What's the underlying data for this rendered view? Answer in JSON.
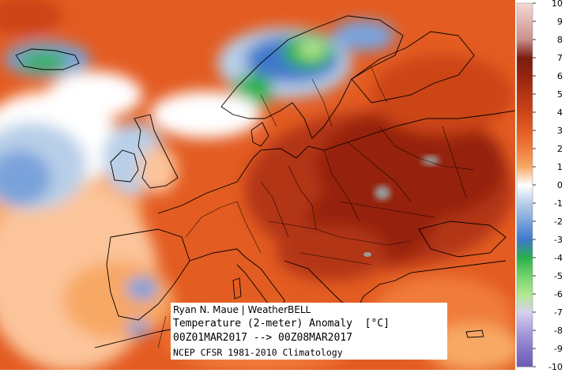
{
  "map": {
    "title": "Temperature (2-meter) Anomaly",
    "units": "[°C]",
    "period": "00Z01MAR2017 --> 00Z08MAR2017",
    "climatology": "NCEP CFSR 1981-2010 Climatology",
    "credit": "Ryan N. Maue | WeatherBELL",
    "region": "Europe"
  },
  "colorbar": {
    "labels": [
      "10",
      "9",
      "8",
      "7",
      "6",
      "5",
      "4",
      "3",
      "2",
      "1",
      "0",
      "-1",
      "-2",
      "-3",
      "-4",
      "-5",
      "-6",
      "-7",
      "-8",
      "-9",
      "-10"
    ],
    "colors": {
      "10": "#f2d9d4",
      "9": "#e0b5b1",
      "8": "#c98e8e",
      "7": "#7a1c0f",
      "6": "#962410",
      "5": "#b23514",
      "4": "#cc4418",
      "3": "#e35c22",
      "2": "#f07c3a",
      "1": "#f8a865",
      "0": "#ffffff",
      "-1": "#b8cfe8",
      "-2": "#7aa3db",
      "-3": "#3f78cc",
      "-4": "#2bb04a",
      "-5": "#72d36b",
      "-6": "#b0e88f",
      "-7": "#d9d2ef",
      "-8": "#ab9ede",
      "-9": "#8778c8",
      "-10": "#6a5ab5"
    }
  }
}
